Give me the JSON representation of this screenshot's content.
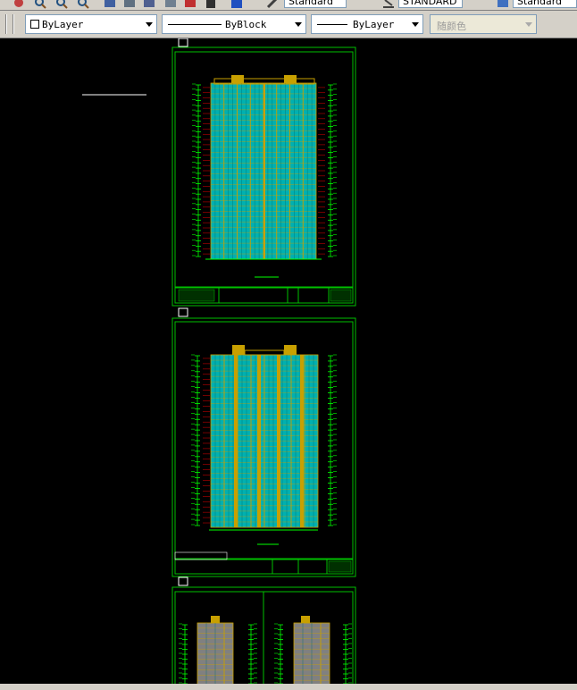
{
  "toolbar_top": {
    "text_style": "Standard",
    "dim_style": "STANDARD",
    "table_style": "Standard"
  },
  "properties_toolbar": {
    "layer_color": "ByLayer",
    "linetype": "ByBlock",
    "lineweight": "ByLayer",
    "plot_style": "随颜色"
  },
  "colors": {
    "frame": "#00c000",
    "building_fill": "#00b0b0",
    "building_line": "#c8a000",
    "dims": "#00ff00",
    "red_line": "#c00000",
    "gray_fill": "#808080"
  }
}
